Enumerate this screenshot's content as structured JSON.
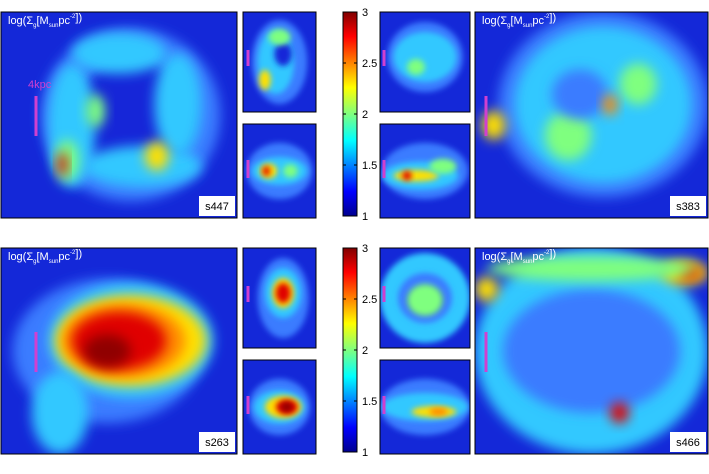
{
  "figure": {
    "axis_label": [
      "log(Σ",
      "g",
      "[M",
      "sun",
      "pc",
      "-2",
      "])"
    ],
    "scale_label": "4kpc",
    "rows": [
      {
        "colorbar": {
          "lim": [
            1,
            3
          ],
          "ticks": [
            1,
            1.5,
            2,
            2.5,
            3
          ]
        },
        "left_id": "s447",
        "right_id": "s383"
      },
      {
        "colorbar": {
          "lim": [
            1,
            3
          ],
          "ticks": [
            1,
            1.5,
            2,
            2.5,
            3
          ]
        },
        "left_id": "s263",
        "right_id": "s466"
      }
    ]
  }
}
